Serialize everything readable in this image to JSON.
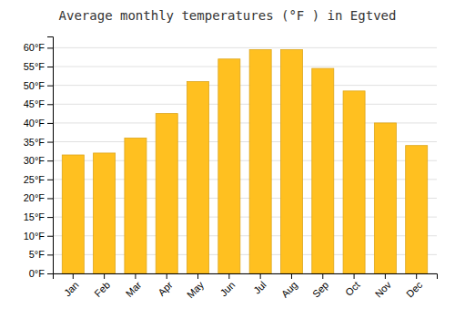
{
  "chart_data": {
    "type": "bar",
    "title": "Average monthly temperatures (°F ) in Egtved",
    "categories": [
      "Jan",
      "Feb",
      "Mar",
      "Apr",
      "May",
      "Jun",
      "Jul",
      "Aug",
      "Sep",
      "Oct",
      "Nov",
      "Dec"
    ],
    "values": [
      31.5,
      32.0,
      36.0,
      42.5,
      51.0,
      57.0,
      59.5,
      59.5,
      54.5,
      48.5,
      40.0,
      34.0
    ],
    "color": "#FFC020",
    "ylim": [
      0,
      63
    ],
    "yticks": [
      {
        "value": 0,
        "label": "0°F"
      },
      {
        "value": 5,
        "label": "5°F"
      },
      {
        "value": 10,
        "label": "10°F"
      },
      {
        "value": 15,
        "label": "15°F"
      },
      {
        "value": 20,
        "label": "20°F"
      },
      {
        "value": 25,
        "label": "25°F"
      },
      {
        "value": 30,
        "label": "30°F"
      },
      {
        "value": 35,
        "label": "35°F"
      },
      {
        "value": 40,
        "label": "40°F"
      },
      {
        "value": 45,
        "label": "45°F"
      },
      {
        "value": 50,
        "label": "50°F"
      },
      {
        "value": 55,
        "label": "55°F"
      },
      {
        "value": 60,
        "label": "60°F"
      }
    ],
    "grid": true
  }
}
